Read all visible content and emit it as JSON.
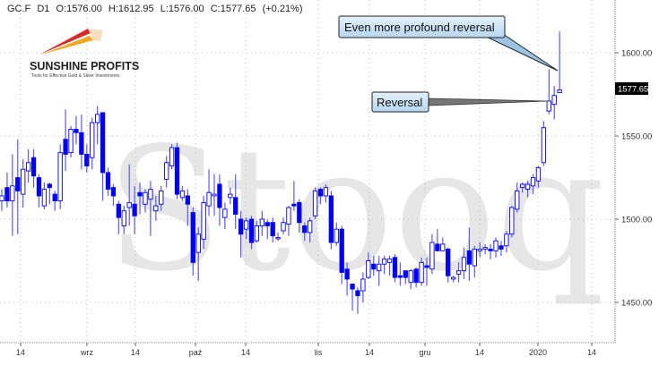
{
  "header": {
    "symbol": "GC.F",
    "interval": "D1",
    "open": "O:1576.00",
    "high": "H:1612.95",
    "low": "L:1576.00",
    "close": "C:1577.65",
    "change": "(+0.21%)"
  },
  "logo": {
    "name": "SUNSHINE PROFITS",
    "tagline": "Tools for Effective Gold & Silver Investments"
  },
  "watermark": "Stooq",
  "annotations": {
    "profound_reversal": "Even more profound reversal",
    "reversal": "Reversal"
  },
  "last_price_label": "1577.65",
  "colors": {
    "candle": "#0000ff",
    "wick": "#5a5aff",
    "callout_fill": "#c9e3f7",
    "price_tag": "#000000"
  },
  "chart_data": {
    "type": "candlestick",
    "title": "",
    "xlabel": "",
    "ylabel": "",
    "ylim": [
      1430,
      1630
    ],
    "grid": true,
    "y_ticks": [
      "1600.00",
      "1550.00",
      "1500.00",
      "1450.00"
    ],
    "x_ticks": [
      "14",
      "wrz",
      "14",
      "paź",
      "14",
      "lis",
      "14",
      "gru",
      "14",
      "2020",
      "14"
    ],
    "ohlc_fields": [
      "open",
      "high",
      "low",
      "close"
    ],
    "candles": [
      [
        1511,
        1518,
        1505,
        1514
      ],
      [
        1519,
        1528,
        1507,
        1511
      ],
      [
        1511,
        1539,
        1490,
        1520
      ],
      [
        1525,
        1548,
        1491,
        1517
      ],
      [
        1515,
        1536,
        1507,
        1530
      ],
      [
        1529,
        1542,
        1522,
        1534
      ],
      [
        1537,
        1542,
        1519,
        1526
      ],
      [
        1525,
        1527,
        1507,
        1514
      ],
      [
        1508,
        1522,
        1506,
        1518
      ],
      [
        1521,
        1522,
        1509,
        1519
      ],
      [
        1515,
        1517,
        1505,
        1511
      ],
      [
        1511,
        1545,
        1506,
        1540
      ],
      [
        1548,
        1566,
        1529,
        1539
      ],
      [
        1540,
        1556,
        1537,
        1554
      ],
      [
        1554,
        1562,
        1545,
        1552
      ],
      [
        1552,
        1563,
        1530,
        1539
      ],
      [
        1539,
        1545,
        1528,
        1532
      ],
      [
        1537,
        1561,
        1530,
        1558
      ],
      [
        1558,
        1568,
        1545,
        1563
      ],
      [
        1564,
        1564,
        1511,
        1528
      ],
      [
        1528,
        1531,
        1514,
        1518
      ],
      [
        1519,
        1521,
        1508,
        1514
      ],
      [
        1509,
        1511,
        1491,
        1501
      ],
      [
        1496,
        1508,
        1491,
        1505
      ],
      [
        1507,
        1533,
        1496,
        1510
      ],
      [
        1509,
        1520,
        1491,
        1502
      ],
      [
        1516,
        1522,
        1503,
        1514
      ],
      [
        1509,
        1518,
        1504,
        1516
      ],
      [
        1512,
        1523,
        1490,
        1518
      ],
      [
        1505,
        1514,
        1499,
        1508
      ],
      [
        1509,
        1520,
        1505,
        1517
      ],
      [
        1524,
        1538,
        1519,
        1534
      ],
      [
        1532,
        1545,
        1530,
        1543
      ],
      [
        1543,
        1546,
        1512,
        1515
      ],
      [
        1513,
        1520,
        1511,
        1517
      ],
      [
        1514,
        1518,
        1496,
        1509
      ],
      [
        1504,
        1507,
        1466,
        1474
      ],
      [
        1480,
        1495,
        1463,
        1491
      ],
      [
        1488,
        1514,
        1482,
        1510
      ],
      [
        1508,
        1530,
        1502,
        1516
      ],
      [
        1514,
        1527,
        1502,
        1515
      ],
      [
        1521,
        1527,
        1496,
        1507
      ],
      [
        1501,
        1510,
        1494,
        1506
      ],
      [
        1513,
        1519,
        1509,
        1515
      ],
      [
        1513,
        1527,
        1494,
        1503
      ],
      [
        1500,
        1505,
        1477,
        1491
      ],
      [
        1494,
        1501,
        1488,
        1499
      ],
      [
        1500,
        1502,
        1482,
        1486
      ],
      [
        1487,
        1499,
        1486,
        1496
      ],
      [
        1496,
        1505,
        1490,
        1500
      ],
      [
        1498,
        1500,
        1488,
        1496
      ],
      [
        1498,
        1501,
        1486,
        1490
      ],
      [
        1489,
        1492,
        1487,
        1489
      ],
      [
        1493,
        1501,
        1491,
        1498
      ],
      [
        1497,
        1508,
        1490,
        1507
      ],
      [
        1509,
        1523,
        1505,
        1508
      ],
      [
        1510,
        1512,
        1492,
        1498
      ],
      [
        1496,
        1498,
        1487,
        1492
      ],
      [
        1492,
        1501,
        1486,
        1499
      ],
      [
        1502,
        1519,
        1500,
        1517
      ],
      [
        1518,
        1519,
        1509,
        1514
      ],
      [
        1514,
        1521,
        1510,
        1519
      ],
      [
        1514,
        1517,
        1482,
        1486
      ],
      [
        1486,
        1498,
        1484,
        1494
      ],
      [
        1494,
        1496,
        1461,
        1468
      ],
      [
        1470,
        1474,
        1454,
        1464
      ],
      [
        1461,
        1461,
        1445,
        1458
      ],
      [
        1457,
        1459,
        1443,
        1454
      ],
      [
        1457,
        1468,
        1450,
        1464
      ],
      [
        1465,
        1480,
        1464,
        1475
      ],
      [
        1473,
        1478,
        1466,
        1470
      ],
      [
        1469,
        1478,
        1460,
        1473
      ],
      [
        1473,
        1478,
        1467,
        1476
      ],
      [
        1474,
        1478,
        1466,
        1476
      ],
      [
        1477,
        1479,
        1462,
        1465
      ],
      [
        1466,
        1474,
        1460,
        1465
      ],
      [
        1469,
        1469,
        1461,
        1465
      ],
      [
        1462,
        1470,
        1458,
        1469
      ],
      [
        1470,
        1471,
        1459,
        1462
      ],
      [
        1462,
        1477,
        1460,
        1474
      ],
      [
        1472,
        1477,
        1460,
        1471
      ],
      [
        1470,
        1491,
        1467,
        1486
      ],
      [
        1485,
        1494,
        1481,
        1481
      ],
      [
        1481,
        1489,
        1481,
        1485
      ],
      [
        1482,
        1483,
        1462,
        1466
      ],
      [
        1464,
        1466,
        1462,
        1465
      ],
      [
        1467,
        1474,
        1462,
        1469
      ],
      [
        1469,
        1483,
        1464,
        1477
      ],
      [
        1481,
        1495,
        1463,
        1473
      ],
      [
        1472,
        1484,
        1465,
        1482
      ],
      [
        1481,
        1486,
        1477,
        1482
      ],
      [
        1482,
        1485,
        1479,
        1483
      ],
      [
        1482,
        1485,
        1476,
        1481
      ],
      [
        1481,
        1489,
        1477,
        1487
      ],
      [
        1484,
        1487,
        1478,
        1482
      ],
      [
        1484,
        1493,
        1480,
        1491
      ],
      [
        1491,
        1508,
        1489,
        1507
      ],
      [
        1506,
        1522,
        1504,
        1517
      ],
      [
        1519,
        1522,
        1516,
        1521
      ],
      [
        1518,
        1523,
        1513,
        1521
      ],
      [
        1520,
        1527,
        1515,
        1525
      ],
      [
        1523,
        1532,
        1519,
        1531
      ],
      [
        1534,
        1559,
        1532,
        1555
      ],
      [
        1565,
        1590,
        1563,
        1571
      ],
      [
        1569,
        1580,
        1560,
        1574.35
      ],
      [
        1576,
        1612.95,
        1576,
        1577.65
      ]
    ]
  }
}
